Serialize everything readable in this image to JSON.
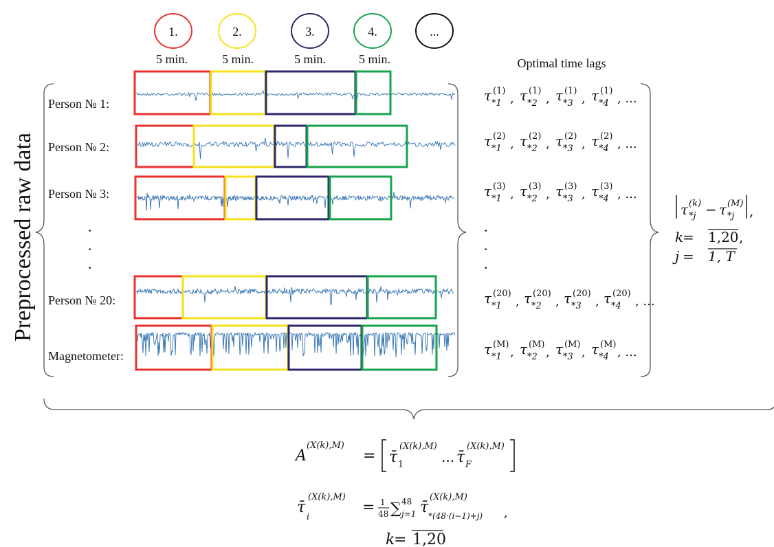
{
  "colors": {
    "red": "#e8312f",
    "yellow": "#f6e21a",
    "navy": "#2b2869",
    "green": "#16a34a",
    "black": "#111111",
    "signal": "#2f6fb0"
  },
  "segments": [
    {
      "label": "1.",
      "color": "#e8312f",
      "duration": "5 min."
    },
    {
      "label": "2.",
      "color": "#f6e21a",
      "duration": "5 min."
    },
    {
      "label": "3.",
      "color": "#2b2869",
      "duration": "5 min."
    },
    {
      "label": "4.",
      "color": "#16a34a",
      "duration": "5 min."
    },
    {
      "label": "...",
      "color": "#111111",
      "duration": ""
    }
  ],
  "left_label": "Preprocessed raw data",
  "lags_header": "Optimal time lags",
  "rows": [
    {
      "name": "Person № 1:",
      "sup": "(1)"
    },
    {
      "name": "Person № 2:",
      "sup": "(2)"
    },
    {
      "name": "Person № 3:",
      "sup": "(3)"
    },
    {
      "name": "Person № 20:",
      "sup": "(20)"
    },
    {
      "name": "Magnetometer:",
      "sup": "(M)"
    }
  ],
  "ellipsis_dot": ".",
  "lag_symbol": "τ",
  "lag_subs": [
    "*1",
    "*2",
    "*3",
    "*4"
  ],
  "lag_tail": ", ...",
  "comma": ",",
  "right_formula": {
    "line1_a": "τ",
    "line1_sub_a": "*j",
    "line1_sup_a": "(k)",
    "line1_minus": "−",
    "line1_b": "τ",
    "line1_sub_b": "*j",
    "line1_sup_b": "(M)",
    "line1_end": ",",
    "line2_var": "k",
    "line2_eq": " = ",
    "line2_range": "1,20",
    "line2_end": ",",
    "line3_var": "j",
    "line3_eq": " = ",
    "line3_range": "1, T"
  },
  "formula_A": {
    "lhs": "A",
    "lhs_sup": "(X(k),M)",
    "eq": "=",
    "tau": "τ̄",
    "sub1": "1",
    "supX": "(X(k),M)",
    "dots": "...",
    "subF": "F"
  },
  "formula_tau": {
    "lhs": "τ̄",
    "lhs_sub": "i",
    "sup": "(X(k),M)",
    "eq": "=",
    "frac_num": "1",
    "frac_den": "48",
    "sum": "∑",
    "sum_sub": "j=1",
    "sum_sup": "48",
    "body": "τ̄",
    "body_sub": "*(48·(i−1)+j)",
    "end": ","
  },
  "formula_k": {
    "var": "k",
    "eq": " = ",
    "range": "1,20"
  }
}
